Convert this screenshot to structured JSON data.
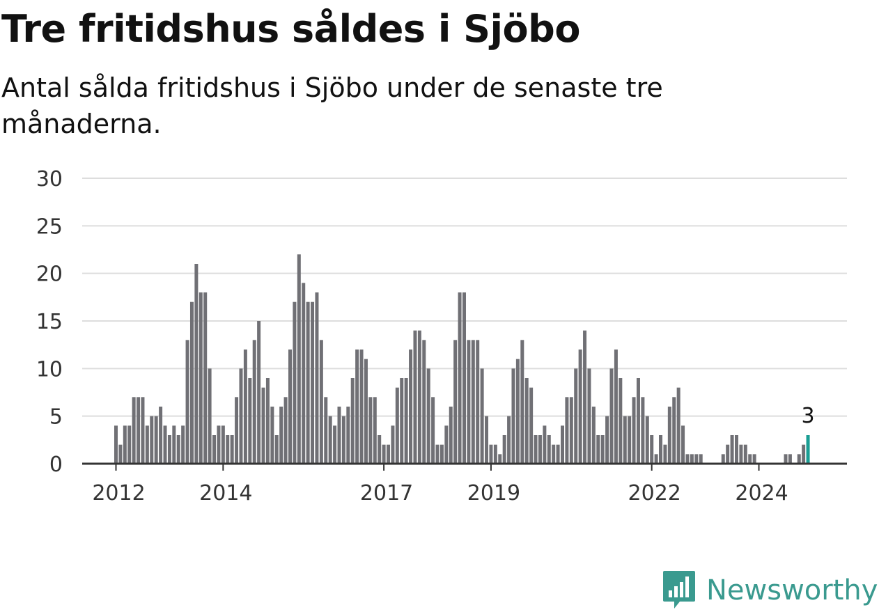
{
  "header": {
    "title": "Tre fritidshus såldes i Sjöbo",
    "subtitle": "Antal sålda fritidshus i Sjöbo under de senaste tre månaderna."
  },
  "brand": {
    "name": "Newsworthy",
    "color": "#3a9a8f",
    "icon": "bar-chart-icon"
  },
  "colors": {
    "bar": "#707075",
    "highlight": "#1a9e94",
    "grid": "#dddddd",
    "axis": "#333333"
  },
  "chart_data": {
    "type": "bar",
    "title": "Tre fritidshus såldes i Sjöbo",
    "subtitle": "Antal sålda fritidshus i Sjöbo under de senaste tre månaderna.",
    "xlabel": "",
    "ylabel": "",
    "ylim": [
      0,
      30
    ],
    "yticks": [
      0,
      5,
      10,
      15,
      20,
      25,
      30
    ],
    "xticks": [
      {
        "label": "2012",
        "index": 0
      },
      {
        "label": "2014",
        "index": 24
      },
      {
        "label": "2017",
        "index": 60
      },
      {
        "label": "2019",
        "index": 84
      },
      {
        "label": "2022",
        "index": 120
      },
      {
        "label": "2024",
        "index": 144
      }
    ],
    "grid": true,
    "legend": "none",
    "start": "2012-01",
    "frequency": "monthly",
    "values": [
      4,
      2,
      4,
      4,
      7,
      7,
      7,
      4,
      5,
      5,
      6,
      4,
      3,
      4,
      3,
      4,
      13,
      17,
      21,
      18,
      18,
      10,
      3,
      4,
      4,
      3,
      3,
      7,
      10,
      12,
      9,
      13,
      15,
      8,
      9,
      6,
      3,
      6,
      7,
      12,
      17,
      22,
      19,
      17,
      17,
      18,
      13,
      7,
      5,
      4,
      6,
      5,
      6,
      9,
      12,
      12,
      11,
      7,
      7,
      3,
      2,
      2,
      4,
      8,
      9,
      9,
      12,
      14,
      14,
      13,
      10,
      7,
      2,
      2,
      4,
      6,
      13,
      18,
      18,
      13,
      13,
      13,
      10,
      5,
      2,
      2,
      1,
      3,
      5,
      10,
      11,
      13,
      9,
      8,
      3,
      3,
      4,
      3,
      2,
      2,
      4,
      7,
      7,
      10,
      12,
      14,
      10,
      6,
      3,
      3,
      5,
      10,
      12,
      9,
      5,
      5,
      7,
      9,
      7,
      5,
      3,
      1,
      3,
      2,
      6,
      7,
      8,
      4,
      1,
      1,
      1,
      1,
      0,
      0,
      0,
      0,
      1,
      2,
      3,
      3,
      2,
      2,
      1,
      1,
      0,
      0,
      0,
      0,
      0,
      0,
      1,
      1,
      0,
      1,
      2,
      3
    ],
    "highlight": {
      "index": 155,
      "label": "3"
    }
  }
}
